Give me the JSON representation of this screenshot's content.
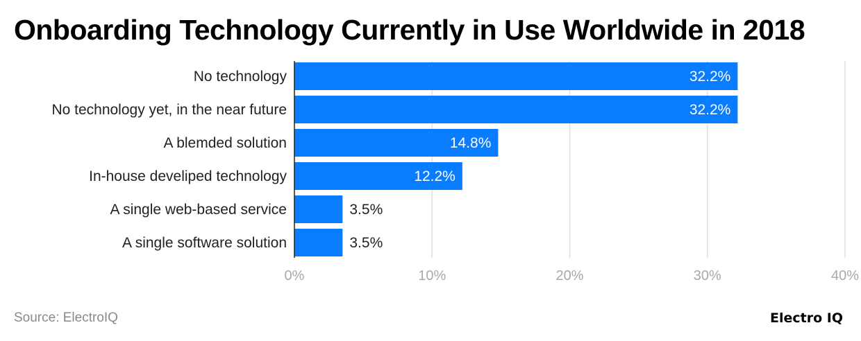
{
  "chart_data": {
    "type": "bar",
    "orientation": "horizontal",
    "title": "Onboarding Technology Currently in Use Worldwide in 2018",
    "categories": [
      "No technology",
      "No technology yet, in the near future",
      "A blemded solution",
      "In-house develiped technology",
      "A single web-based service",
      "A single software solution"
    ],
    "values": [
      32.2,
      32.2,
      14.8,
      12.2,
      3.5,
      3.5
    ],
    "data_labels": [
      "32.2%",
      "32.2%",
      "14.8%",
      "12.2%",
      "3.5%",
      "3.5%"
    ],
    "xlim": [
      0,
      40
    ],
    "x_ticks": [
      0,
      10,
      20,
      30,
      40
    ],
    "x_tick_labels": [
      "0%",
      "10%",
      "20%",
      "30%",
      "40%"
    ],
    "xlabel": "",
    "ylabel": "",
    "grid": true,
    "bar_color": "#0a7cff"
  },
  "footer": {
    "source": "Source: ElectroIQ",
    "logo": "Electro IQ"
  }
}
